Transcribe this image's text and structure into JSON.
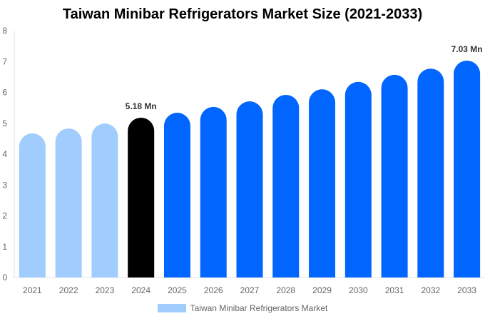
{
  "chart_data": {
    "type": "bar",
    "title": "Taiwan Minibar Refrigerators Market Size (2021-2033)",
    "categories": [
      "2021",
      "2022",
      "2023",
      "2024",
      "2025",
      "2026",
      "2027",
      "2028",
      "2029",
      "2030",
      "2031",
      "2032",
      "2033"
    ],
    "series": [
      {
        "name": "Taiwan Minibar Refrigerators Market",
        "values": [
          4.67,
          4.83,
          4.99,
          5.18,
          5.34,
          5.53,
          5.71,
          5.92,
          6.1,
          6.34,
          6.57,
          6.77,
          7.03
        ]
      }
    ],
    "data_labels": {
      "2024": "5.18 Mn",
      "2033": "7.03 Mn"
    },
    "ylim": [
      0,
      8
    ],
    "yticks": [
      0,
      1,
      2,
      3,
      4,
      5,
      6,
      7,
      8
    ],
    "grid": false,
    "legend_position": "bottom",
    "colors": {
      "historical": "#a1cdfe",
      "base_year": "#000000",
      "forecast": "#0066ff"
    }
  }
}
